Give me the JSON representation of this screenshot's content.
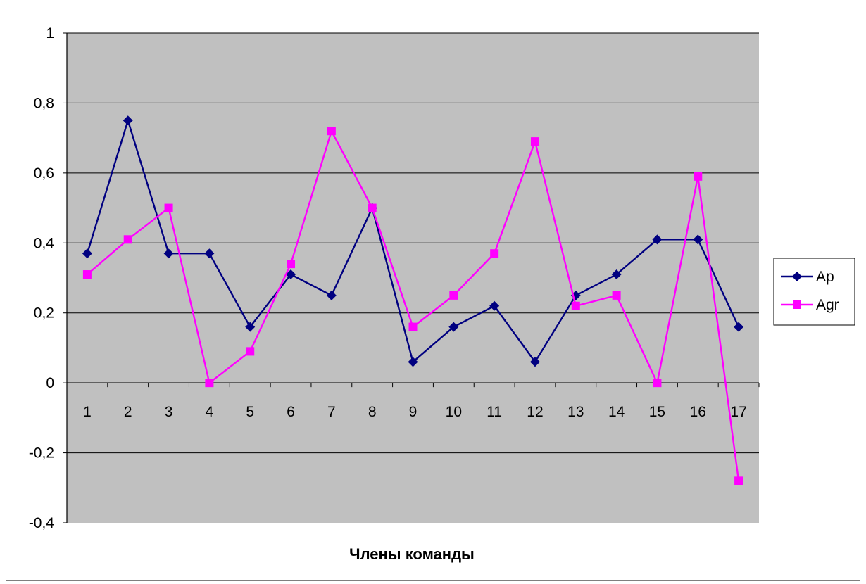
{
  "chart_data": {
    "type": "line",
    "title": "",
    "xlabel": "Члены команды",
    "ylabel": "",
    "categories": [
      "1",
      "2",
      "3",
      "4",
      "5",
      "6",
      "7",
      "8",
      "9",
      "10",
      "11",
      "12",
      "13",
      "14",
      "15",
      "16",
      "17"
    ],
    "ylim": [
      -0.4,
      1
    ],
    "yticks": [
      -0.4,
      -0.2,
      0,
      0.2,
      0.4,
      0.6,
      0.8,
      1
    ],
    "ytick_labels": [
      "-0,4",
      "-0,2",
      "0",
      "0,2",
      "0,4",
      "0,6",
      "0,8",
      "1"
    ],
    "grid": true,
    "plot_background": "#c0c0c0",
    "legend_position": "right",
    "series": [
      {
        "name": "Ap",
        "color": "#000080",
        "marker": "diamond",
        "values": [
          0.37,
          0.75,
          0.37,
          0.37,
          0.16,
          0.31,
          0.25,
          0.5,
          0.06,
          0.16,
          0.22,
          0.06,
          0.25,
          0.31,
          0.41,
          0.41,
          0.16
        ]
      },
      {
        "name": "Agr",
        "color": "#ff00ff",
        "marker": "square",
        "values": [
          0.31,
          0.41,
          0.5,
          0.0,
          0.09,
          0.34,
          0.72,
          0.5,
          0.16,
          0.25,
          0.37,
          0.69,
          0.22,
          0.25,
          0.0,
          0.59,
          -0.28
        ]
      }
    ]
  }
}
